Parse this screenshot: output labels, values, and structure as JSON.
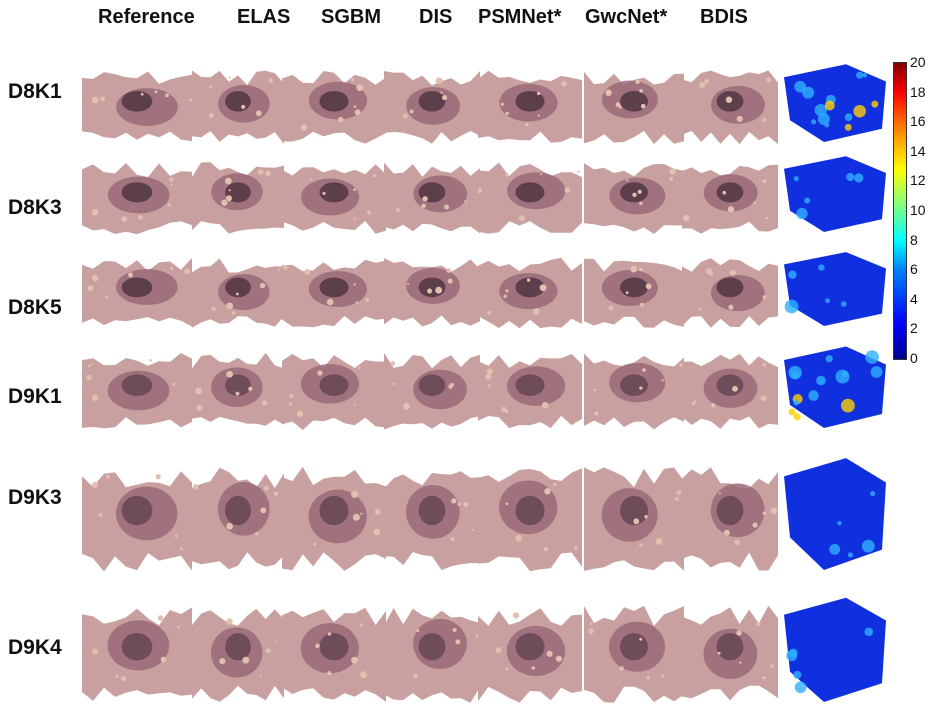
{
  "columns": [
    "Reference",
    "ELAS",
    "SGBM",
    "DIS",
    "PSMNet*",
    "GwcNet*",
    "BDIS"
  ],
  "rows": [
    "D8K1",
    "D8K3",
    "D8K5",
    "D9K1",
    "D9K3",
    "D9K4"
  ],
  "colorbar": {
    "ticks": [
      "20",
      "18",
      "16",
      "14",
      "12",
      "10",
      "8",
      "6",
      "4",
      "2",
      "0"
    ]
  },
  "colors": {
    "tissue_dark": "#5a3c4a",
    "tissue_mid": "#9a6a78",
    "tissue_light": "#c8a0a0",
    "tissue_pale": "#e2c0b0",
    "error_blue": "#1030e0",
    "error_cyan": "#30b0ff"
  }
}
